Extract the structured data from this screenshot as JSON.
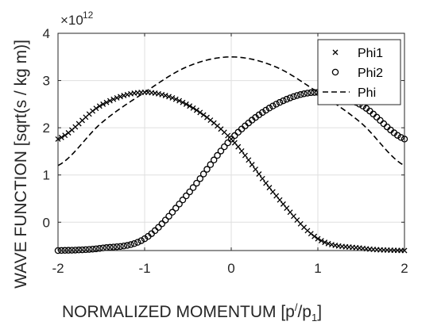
{
  "chart_data": {
    "type": "line",
    "xlabel_main": "NORMALIZED MOMENTUM  [p",
    "xlabel_prime": "/",
    "xlabel_mid": "/p",
    "xlabel_sub": "1",
    "xlabel_end": "]",
    "ylabel": "WAVE FUNCTION  [sqrt(s / kg m)]",
    "y_exponent_base": "×10",
    "y_exponent_power": "12",
    "xlim": [
      -2,
      2
    ],
    "ylim": [
      -0.6,
      4
    ],
    "x_ticks": [
      -2,
      -1,
      0,
      1,
      2
    ],
    "y_ticks": [
      0,
      1,
      2,
      3,
      4
    ],
    "x_tick_labels": [
      "-2",
      "-1",
      "0",
      "1",
      "2"
    ],
    "y_tick_labels": [
      "0",
      "1",
      "2",
      "3",
      "4"
    ],
    "grid": true,
    "legend_position": "top-right",
    "series": [
      {
        "name": "Phi1",
        "marker": "x",
        "line": "none",
        "x": [
          -2,
          -1.5,
          -1,
          -0.5,
          0,
          0.5,
          1,
          1.5,
          2
        ],
        "y": [
          1.76,
          2.48,
          2.75,
          2.48,
          1.76,
          0.6,
          -0.35,
          -0.55,
          -0.6
        ]
      },
      {
        "name": "Phi2",
        "marker": "o",
        "line": "none",
        "x": [
          -2,
          -1.5,
          -1,
          -0.5,
          0,
          0.5,
          1,
          1.5,
          2
        ],
        "y": [
          -0.6,
          -0.55,
          -0.35,
          0.6,
          1.76,
          2.48,
          2.75,
          2.48,
          1.76
        ]
      },
      {
        "name": "Phi",
        "marker": "none",
        "line": "dashed",
        "x": [
          -2,
          -1.5,
          -1,
          -0.5,
          0,
          0.5,
          1,
          1.5,
          2
        ],
        "y": [
          1.2,
          2.1,
          2.75,
          3.3,
          3.5,
          3.3,
          2.75,
          2.1,
          1.2
        ]
      }
    ]
  }
}
